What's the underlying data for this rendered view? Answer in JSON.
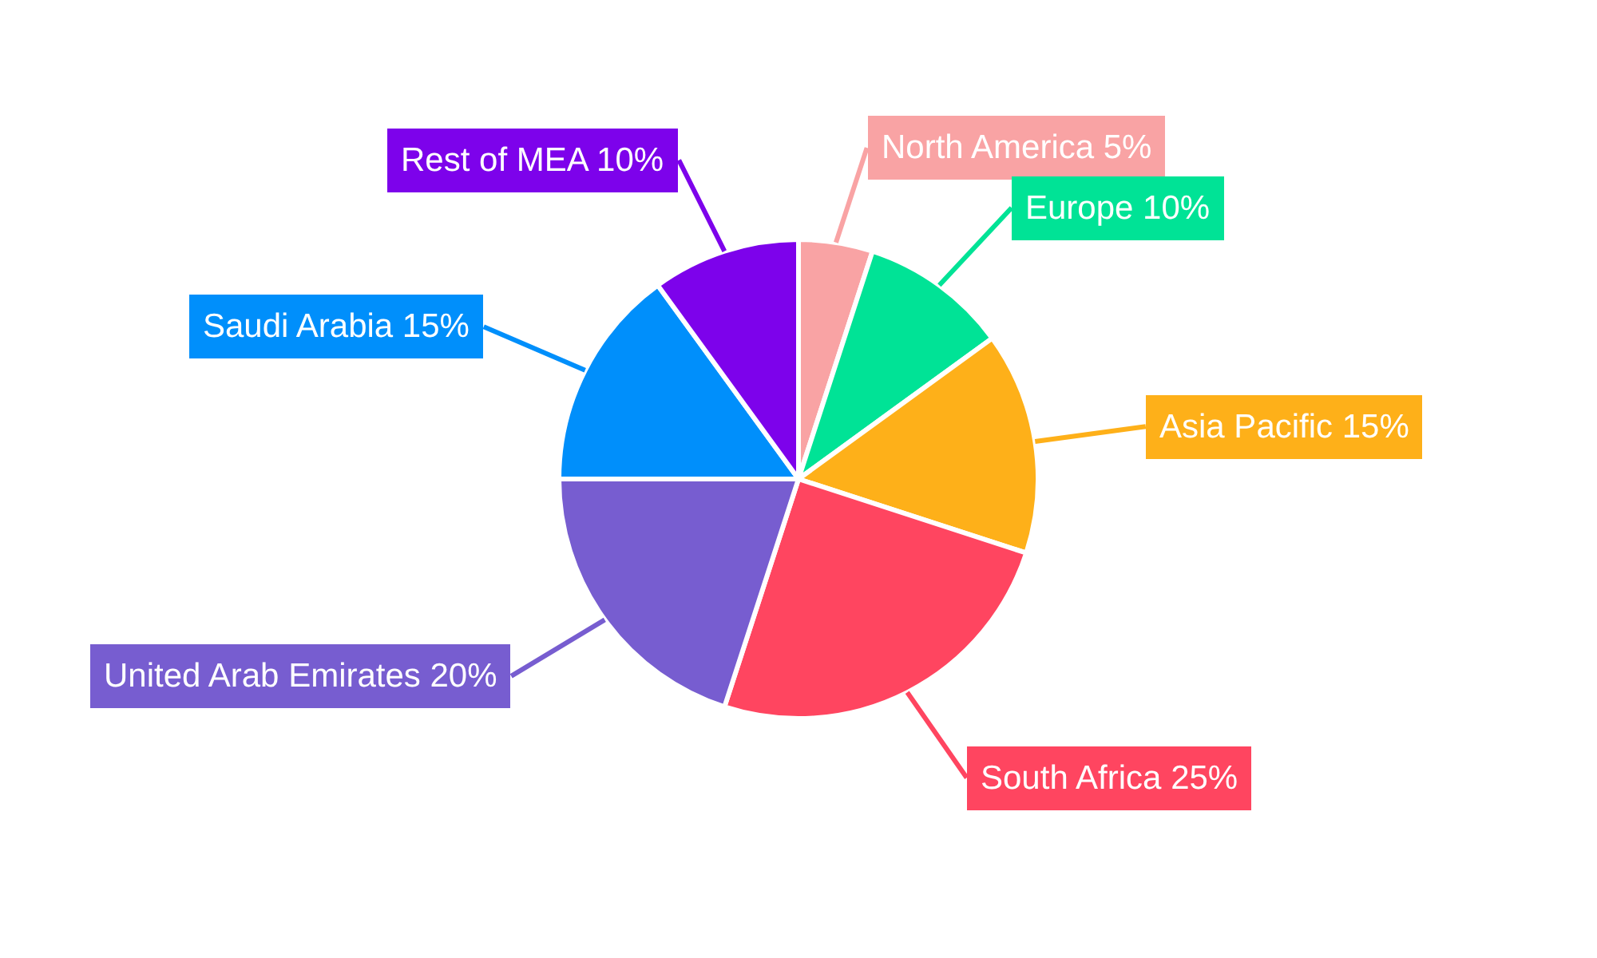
{
  "chart_data": {
    "type": "pie",
    "categories": [
      "North America",
      "Europe",
      "Asia Pacific",
      "South Africa",
      "United Arab Emirates",
      "Saudi Arabia",
      "Rest of MEA"
    ],
    "values": [
      5,
      10,
      15,
      25,
      20,
      15,
      10
    ],
    "value_labels": [
      "5%",
      "10%",
      "15%",
      "25%",
      "20%",
      "15%",
      "10%"
    ],
    "colors": [
      "#f9a3a4",
      "#00e396",
      "#feb019",
      "#ff4560",
      "#775dd0",
      "#008ffb",
      "#7d02eb"
    ],
    "legend": false
  }
}
